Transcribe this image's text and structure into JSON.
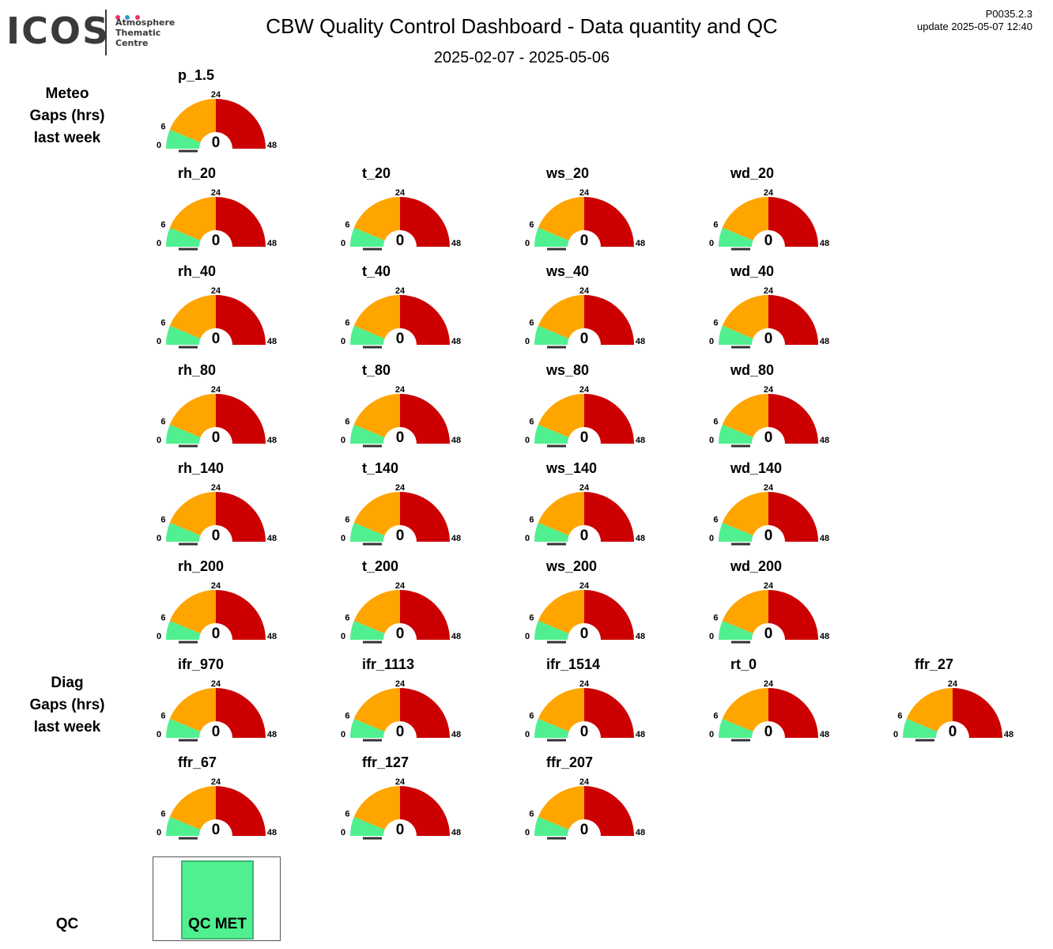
{
  "header": {
    "logo_main": "ICOS",
    "logo_sub": [
      "Atmosphere",
      "Thematic",
      "Centre"
    ],
    "logo_dot_colors": [
      "#e8336d",
      "#2e9ad7",
      "#e8336d"
    ],
    "title": "CBW  Quality Control Dashboard - Data quantity and QC",
    "date_range": "2025-02-07 - 2025-05-06",
    "version": "P0035.2.3",
    "update": "update  2025-05-07 12:40"
  },
  "sections": {
    "meteo": [
      "Meteo",
      "Gaps (hrs)",
      "last week"
    ],
    "diag": [
      "Diag",
      "Gaps (hrs)",
      "last week"
    ],
    "qc": "QC"
  },
  "chart_data": {
    "type": "gauge",
    "scale": {
      "min": 0,
      "max": 48,
      "ticks": [
        "0",
        "6",
        "24",
        "48"
      ]
    },
    "bands": [
      {
        "from": 0,
        "to": 6,
        "color": "#50f090"
      },
      {
        "from": 6,
        "to": 24,
        "color": "#ffa500"
      },
      {
        "from": 24,
        "to": 48,
        "color": "#cc0000"
      }
    ],
    "rows": [
      [
        {
          "name": "p_1.5",
          "value": 0
        }
      ],
      [
        {
          "name": "rh_20",
          "value": 0
        },
        {
          "name": "t_20",
          "value": 0
        },
        {
          "name": "ws_20",
          "value": 0
        },
        {
          "name": "wd_20",
          "value": 0
        }
      ],
      [
        {
          "name": "rh_40",
          "value": 0
        },
        {
          "name": "t_40",
          "value": 0
        },
        {
          "name": "ws_40",
          "value": 0
        },
        {
          "name": "wd_40",
          "value": 0
        }
      ],
      [
        {
          "name": "rh_80",
          "value": 0
        },
        {
          "name": "t_80",
          "value": 0
        },
        {
          "name": "ws_80",
          "value": 0
        },
        {
          "name": "wd_80",
          "value": 0
        }
      ],
      [
        {
          "name": "rh_140",
          "value": 0
        },
        {
          "name": "t_140",
          "value": 0
        },
        {
          "name": "ws_140",
          "value": 0
        },
        {
          "name": "wd_140",
          "value": 0
        }
      ],
      [
        {
          "name": "rh_200",
          "value": 0
        },
        {
          "name": "t_200",
          "value": 0
        },
        {
          "name": "ws_200",
          "value": 0
        },
        {
          "name": "wd_200",
          "value": 0
        }
      ],
      [
        {
          "name": "ifr_970",
          "value": 0
        },
        {
          "name": "ifr_1113",
          "value": 0
        },
        {
          "name": "ifr_1514",
          "value": 0
        },
        {
          "name": "rt_0",
          "value": 0
        },
        {
          "name": "ffr_27",
          "value": 0
        }
      ],
      [
        {
          "name": "ffr_67",
          "value": 0
        },
        {
          "name": "ffr_127",
          "value": 0
        },
        {
          "name": "ffr_207",
          "value": 0
        }
      ]
    ]
  },
  "qc": {
    "label": "QC MET",
    "color": "#50f090"
  }
}
